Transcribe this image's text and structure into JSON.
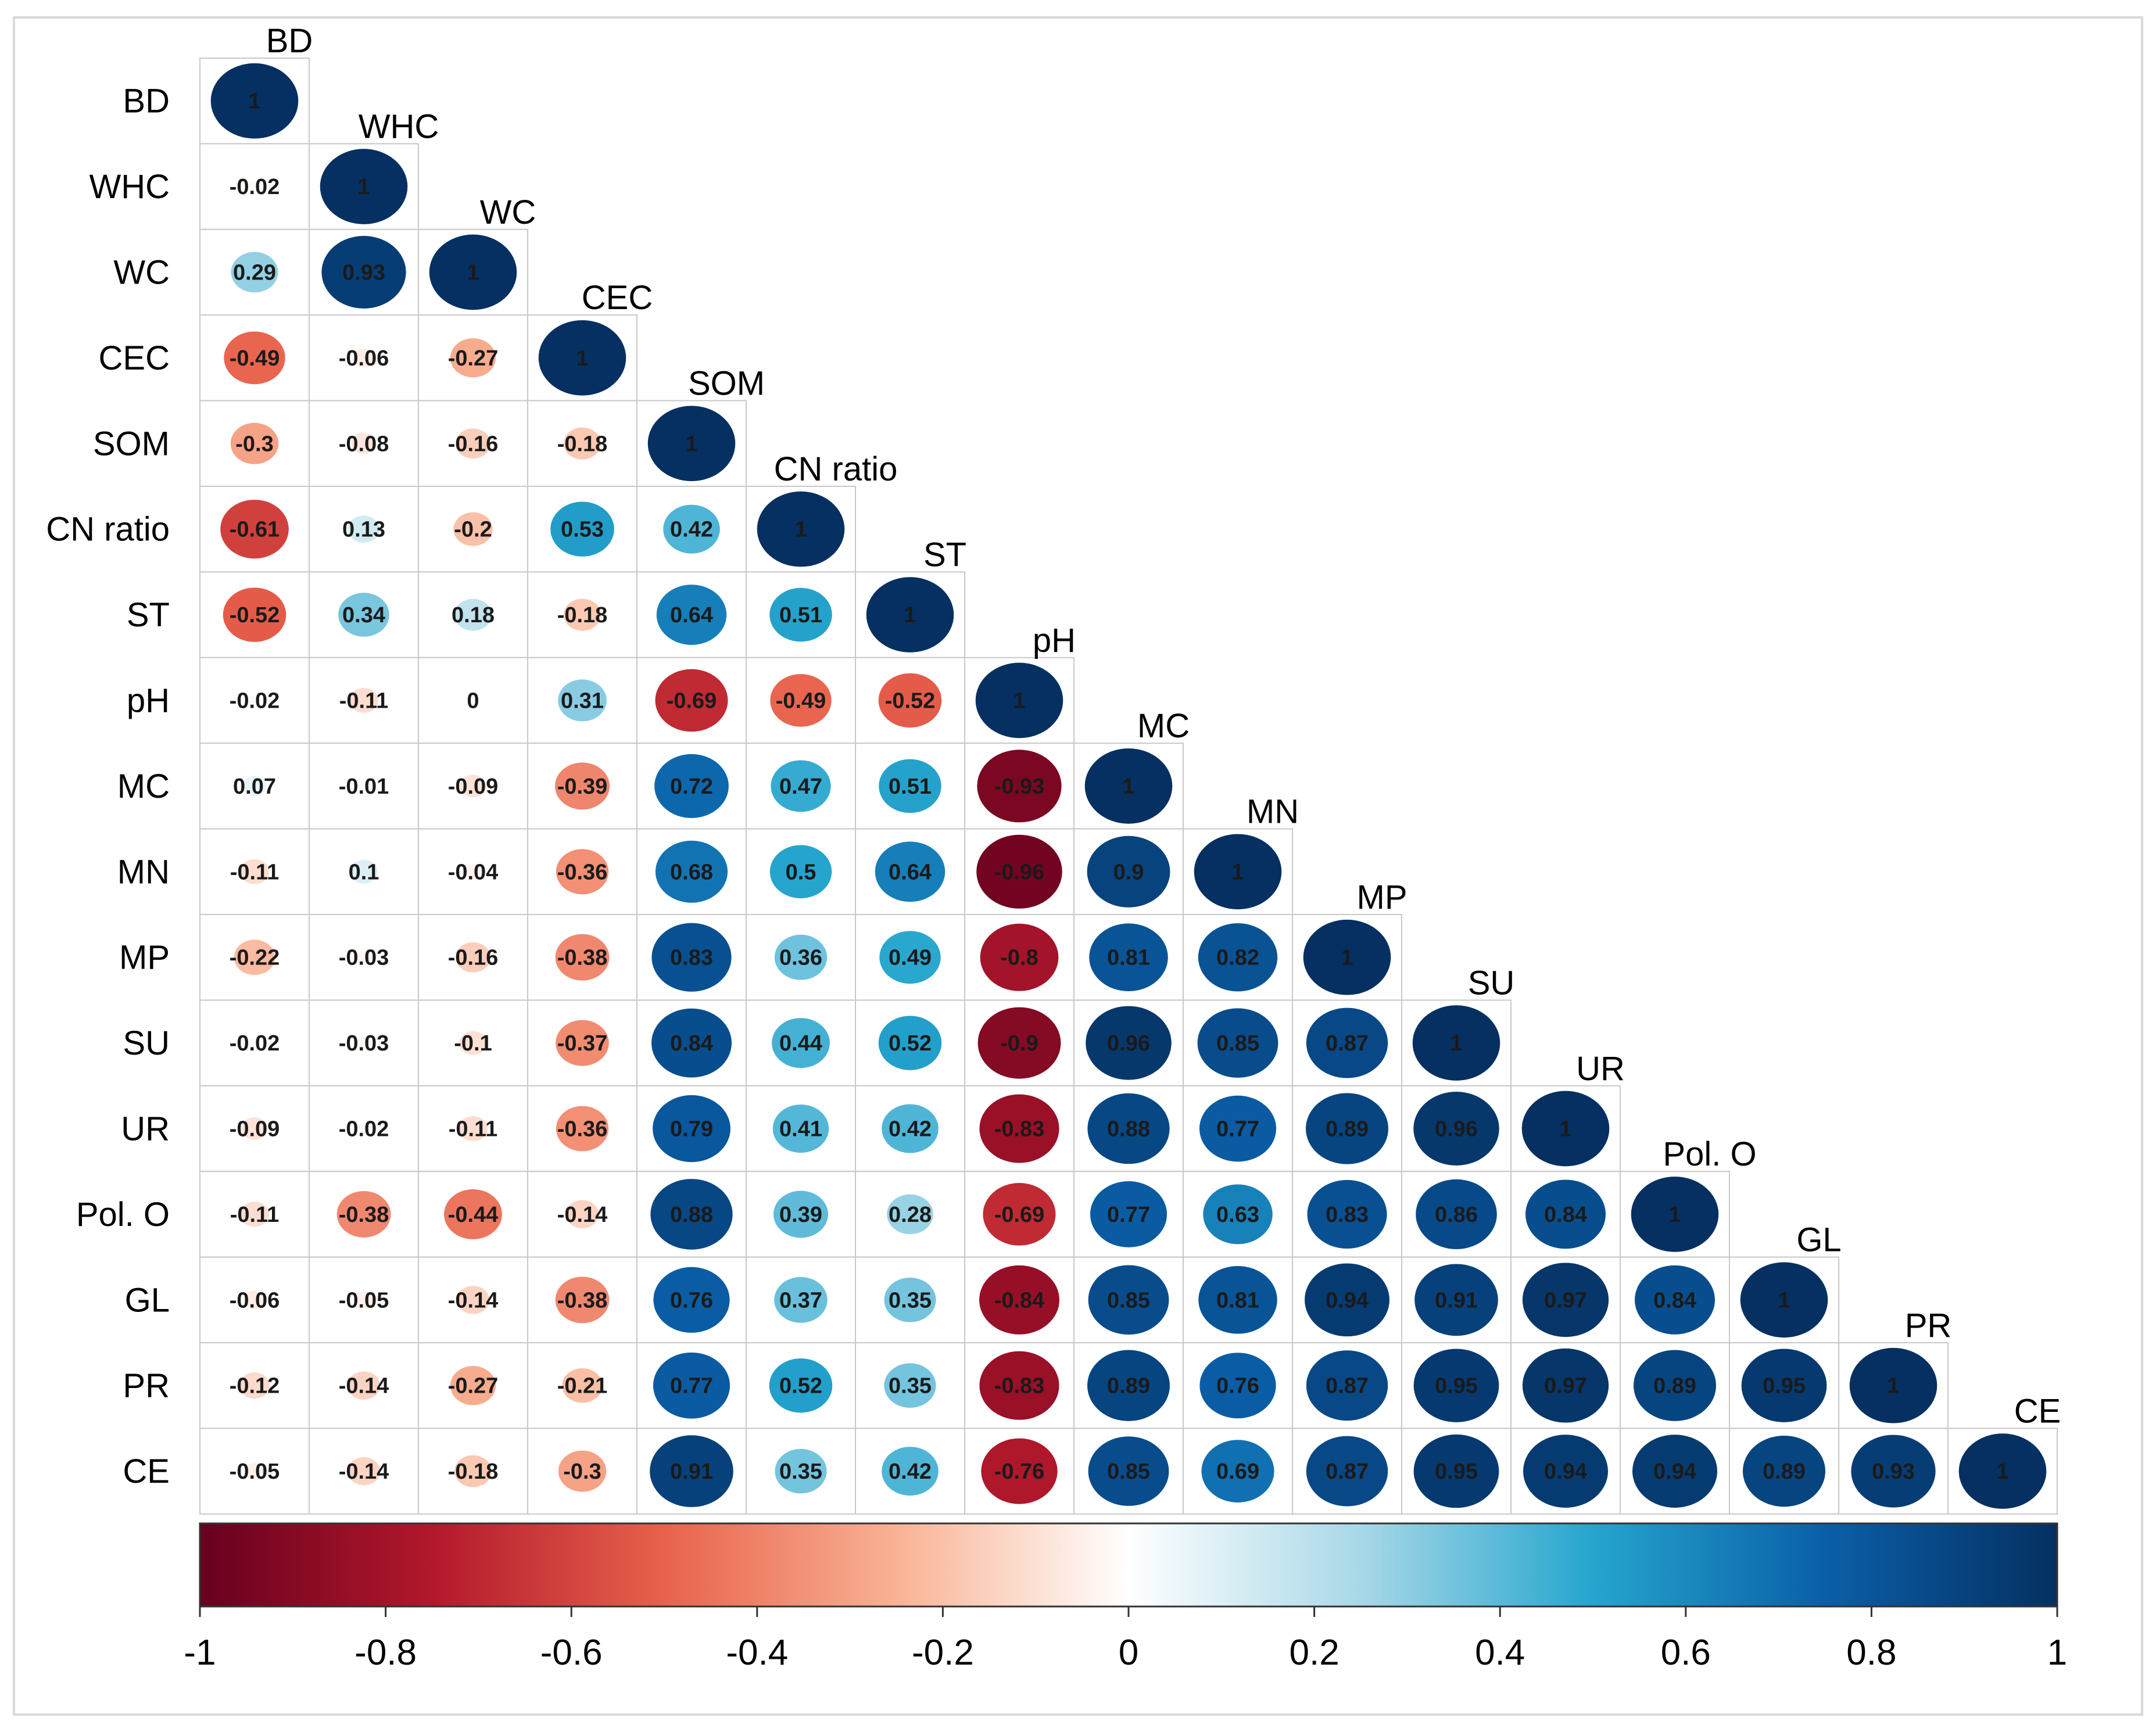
{
  "chart_data": {
    "type": "heatmap",
    "subtype": "correlation-lower-triangle-circles",
    "variables": [
      "BD",
      "WHC",
      "WC",
      "CEC",
      "SOM",
      "CN ratio",
      "ST",
      "pH",
      "MC",
      "MN",
      "MP",
      "SU",
      "UR",
      "Pol. O",
      "GL",
      "PR",
      "CE"
    ],
    "matrix": [
      [
        1
      ],
      [
        -0.02,
        1
      ],
      [
        0.29,
        0.93,
        1
      ],
      [
        -0.49,
        -0.06,
        -0.27,
        1
      ],
      [
        -0.3,
        -0.08,
        -0.16,
        -0.18,
        1
      ],
      [
        -0.61,
        0.13,
        -0.2,
        0.53,
        0.42,
        1
      ],
      [
        -0.52,
        0.34,
        0.18,
        -0.18,
        0.64,
        0.51,
        1
      ],
      [
        -0.02,
        -0.11,
        0,
        0.31,
        -0.69,
        -0.49,
        -0.52,
        1
      ],
      [
        0.07,
        -0.01,
        -0.09,
        -0.39,
        0.72,
        0.47,
        0.51,
        -0.93,
        1
      ],
      [
        -0.11,
        0.1,
        -0.04,
        -0.36,
        0.68,
        0.5,
        0.64,
        -0.96,
        0.9,
        1
      ],
      [
        -0.22,
        -0.03,
        -0.16,
        -0.38,
        0.83,
        0.36,
        0.49,
        -0.8,
        0.81,
        0.82,
        1
      ],
      [
        -0.02,
        -0.03,
        -0.1,
        -0.37,
        0.84,
        0.44,
        0.52,
        -0.9,
        0.96,
        0.85,
        0.87,
        1
      ],
      [
        -0.09,
        -0.02,
        -0.11,
        -0.36,
        0.79,
        0.41,
        0.42,
        -0.83,
        0.88,
        0.77,
        0.89,
        0.96,
        1
      ],
      [
        -0.11,
        -0.38,
        -0.44,
        -0.14,
        0.88,
        0.39,
        0.28,
        -0.69,
        0.77,
        0.63,
        0.83,
        0.86,
        0.84,
        1
      ],
      [
        -0.06,
        -0.05,
        -0.14,
        -0.38,
        0.76,
        0.37,
        0.35,
        -0.84,
        0.85,
        0.81,
        0.94,
        0.91,
        0.97,
        0.84,
        1
      ],
      [
        -0.12,
        -0.14,
        -0.27,
        -0.21,
        0.77,
        0.52,
        0.35,
        -0.83,
        0.89,
        0.76,
        0.87,
        0.95,
        0.97,
        0.89,
        0.95,
        1
      ],
      [
        -0.05,
        -0.14,
        -0.18,
        -0.3,
        0.91,
        0.35,
        0.42,
        -0.76,
        0.85,
        0.69,
        0.87,
        0.95,
        0.94,
        0.94,
        0.89,
        0.93,
        1
      ]
    ],
    "value_labels": [
      [
        "1"
      ],
      [
        "-0.02",
        "1"
      ],
      [
        "0.29",
        "0.93",
        "1"
      ],
      [
        "-0.49",
        "-0.06",
        "-0.27",
        "1"
      ],
      [
        "-0.3",
        "-0.08",
        "-0.16",
        "-0.18",
        "1"
      ],
      [
        "-0.61",
        "0.13",
        "-0.2",
        "0.53",
        "0.42",
        "1"
      ],
      [
        "-0.52",
        "0.34",
        "0.18",
        "-0.18",
        "0.64",
        "0.51",
        "1"
      ],
      [
        "-0.02",
        "-0.11",
        "0",
        "0.31",
        "-0.69",
        "-0.49",
        "-0.52",
        "1"
      ],
      [
        "0.07",
        "-0.01",
        "-0.09",
        "-0.39",
        "0.72",
        "0.47",
        "0.51",
        "-0.93",
        "1"
      ],
      [
        "-0.11",
        "0.1",
        "-0.04",
        "-0.36",
        "0.68",
        "0.5",
        "0.64",
        "-0.96",
        "0.9",
        "1"
      ],
      [
        "-0.22",
        "-0.03",
        "-0.16",
        "-0.38",
        "0.83",
        "0.36",
        "0.49",
        "-0.8",
        "0.81",
        "0.82",
        "1"
      ],
      [
        "-0.02",
        "-0.03",
        "-0.1",
        "-0.37",
        "0.84",
        "0.44",
        "0.52",
        "-0.9",
        "0.96",
        "0.85",
        "0.87",
        "1"
      ],
      [
        "-0.09",
        "-0.02",
        "-0.11",
        "-0.36",
        "0.79",
        "0.41",
        "0.42",
        "-0.83",
        "0.88",
        "0.77",
        "0.89",
        "0.96",
        "1"
      ],
      [
        "-0.11",
        "-0.38",
        "-0.44",
        "-0.14",
        "0.88",
        "0.39",
        "0.28",
        "-0.69",
        "0.77",
        "0.63",
        "0.83",
        "0.86",
        "0.84",
        "1"
      ],
      [
        "-0.06",
        "-0.05",
        "-0.14",
        "-0.38",
        "0.76",
        "0.37",
        "0.35",
        "-0.84",
        "0.85",
        "0.81",
        "0.94",
        "0.91",
        "0.97",
        "0.84",
        "1"
      ],
      [
        "-0.12",
        "-0.14",
        "-0.27",
        "-0.21",
        "0.77",
        "0.52",
        "0.35",
        "-0.83",
        "0.89",
        "0.76",
        "0.87",
        "0.95",
        "0.97",
        "0.89",
        "0.95",
        "1"
      ],
      [
        "-0.05",
        "-0.14",
        "-0.18",
        "-0.3",
        "0.91",
        "0.35",
        "0.42",
        "-0.76",
        "0.85",
        "0.69",
        "0.87",
        "0.95",
        "0.94",
        "0.94",
        "0.89",
        "0.93",
        "1"
      ]
    ],
    "color_scale": {
      "range": [
        -1,
        1
      ],
      "ticks": [
        "-1",
        "-0.8",
        "-0.6",
        "-0.4",
        "-0.2",
        "0",
        "0.2",
        "0.4",
        "0.6",
        "0.8",
        "1"
      ],
      "stops": [
        {
          "value": -1,
          "color": "#67001F"
        },
        {
          "value": -0.75,
          "color": "#B2182B"
        },
        {
          "value": -0.5,
          "color": "#E8624C"
        },
        {
          "value": -0.25,
          "color": "#F9B294"
        },
        {
          "value": 0,
          "color": "#FFFFFF"
        },
        {
          "value": 0.25,
          "color": "#A8D8E8"
        },
        {
          "value": 0.5,
          "color": "#25A5CE"
        },
        {
          "value": 0.75,
          "color": "#0A5FA8"
        },
        {
          "value": 1,
          "color": "#053061"
        }
      ]
    },
    "legend_position": "bottom"
  }
}
